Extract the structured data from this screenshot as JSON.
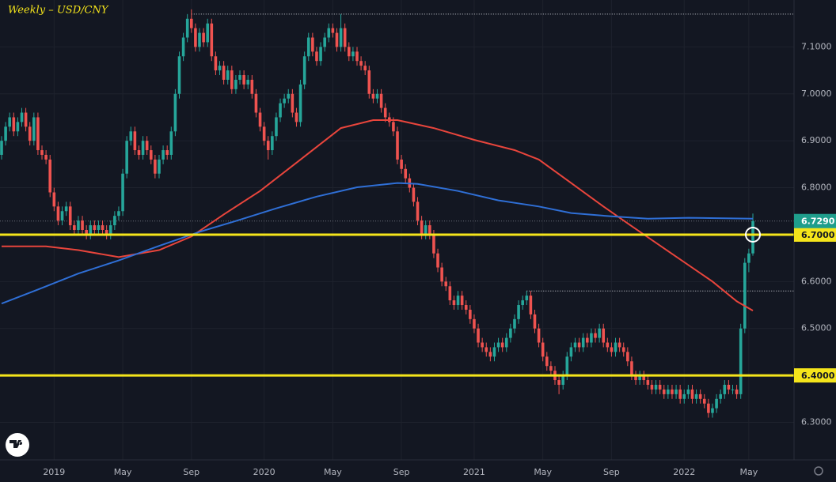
{
  "chart_data": {
    "type": "candlestick",
    "title": "Weekly – USD/CNY",
    "up_color": "#26a69a",
    "down_color": "#ef5350",
    "grid": true,
    "ylim": [
      6.22,
      7.2
    ],
    "yticks": [
      {
        "value": 6.3,
        "label": "6.3000"
      },
      {
        "value": 6.4,
        "label": "6.4000"
      },
      {
        "value": 6.5,
        "label": "6.5000"
      },
      {
        "value": 6.6,
        "label": "6.6000"
      },
      {
        "value": 6.7,
        "label": "6.7000"
      },
      {
        "value": 6.8,
        "label": "6.8000"
      },
      {
        "value": 6.9,
        "label": "6.9000"
      },
      {
        "value": 7.0,
        "label": "7.0000"
      },
      {
        "value": 7.1,
        "label": "7.1000"
      }
    ],
    "xlim": [
      0,
      186
    ],
    "xticks": [
      {
        "value": 13,
        "label": "2019"
      },
      {
        "value": 30,
        "label": "May"
      },
      {
        "value": 47,
        "label": "Sep"
      },
      {
        "value": 65,
        "label": "2020"
      },
      {
        "value": 82,
        "label": "May"
      },
      {
        "value": 99,
        "label": "Sep"
      },
      {
        "value": 117,
        "label": "2021"
      },
      {
        "value": 134,
        "label": "May"
      },
      {
        "value": 151,
        "label": "Sep"
      },
      {
        "value": 169,
        "label": "2022"
      },
      {
        "value": 185,
        "label": "May"
      }
    ],
    "candles": [
      [
        6.87,
        6.91,
        6.86,
        6.9
      ],
      [
        6.9,
        6.94,
        6.89,
        6.93
      ],
      [
        6.93,
        6.96,
        6.92,
        6.95
      ],
      [
        6.95,
        6.96,
        6.91,
        6.92
      ],
      [
        6.92,
        6.95,
        6.91,
        6.94
      ],
      [
        6.94,
        6.97,
        6.93,
        6.96
      ],
      [
        6.96,
        6.97,
        6.92,
        6.93
      ],
      [
        6.93,
        6.94,
        6.89,
        6.9
      ],
      [
        6.9,
        6.96,
        6.89,
        6.95
      ],
      [
        6.95,
        6.96,
        6.87,
        6.88
      ],
      [
        6.88,
        6.89,
        6.86,
        6.87
      ],
      [
        6.87,
        6.88,
        6.85,
        6.86
      ],
      [
        6.86,
        6.87,
        6.78,
        6.79
      ],
      [
        6.79,
        6.8,
        6.75,
        6.76
      ],
      [
        6.76,
        6.77,
        6.72,
        6.73
      ],
      [
        6.73,
        6.76,
        6.72,
        6.75
      ],
      [
        6.75,
        6.77,
        6.74,
        6.76
      ],
      [
        6.76,
        6.77,
        6.71,
        6.72
      ],
      [
        6.72,
        6.73,
        6.7,
        6.71
      ],
      [
        6.71,
        6.74,
        6.7,
        6.73
      ],
      [
        6.73,
        6.74,
        6.7,
        6.71
      ],
      [
        6.71,
        6.72,
        6.69,
        6.7
      ],
      [
        6.7,
        6.73,
        6.69,
        6.72
      ],
      [
        6.72,
        6.73,
        6.7,
        6.71
      ],
      [
        6.71,
        6.73,
        6.7,
        6.72
      ],
      [
        6.72,
        6.73,
        6.7,
        6.71
      ],
      [
        6.71,
        6.72,
        6.69,
        6.7
      ],
      [
        6.7,
        6.73,
        6.69,
        6.72
      ],
      [
        6.72,
        6.75,
        6.71,
        6.74
      ],
      [
        6.74,
        6.76,
        6.73,
        6.75
      ],
      [
        6.75,
        6.84,
        6.74,
        6.83
      ],
      [
        6.83,
        6.91,
        6.82,
        6.9
      ],
      [
        6.9,
        6.93,
        6.89,
        6.92
      ],
      [
        6.92,
        6.93,
        6.87,
        6.88
      ],
      [
        6.88,
        6.89,
        6.86,
        6.87
      ],
      [
        6.87,
        6.91,
        6.86,
        6.9
      ],
      [
        6.9,
        6.91,
        6.87,
        6.88
      ],
      [
        6.88,
        6.89,
        6.85,
        6.86
      ],
      [
        6.86,
        6.87,
        6.82,
        6.83
      ],
      [
        6.83,
        6.87,
        6.82,
        6.86
      ],
      [
        6.86,
        6.89,
        6.85,
        6.88
      ],
      [
        6.88,
        6.89,
        6.86,
        6.87
      ],
      [
        6.87,
        6.93,
        6.86,
        6.92
      ],
      [
        6.92,
        7.01,
        6.91,
        7.0
      ],
      [
        7.0,
        7.09,
        6.99,
        7.08
      ],
      [
        7.08,
        7.13,
        7.07,
        7.12
      ],
      [
        7.12,
        7.17,
        7.11,
        7.16
      ],
      [
        7.16,
        7.18,
        7.13,
        7.14
      ],
      [
        7.14,
        7.15,
        7.09,
        7.1
      ],
      [
        7.1,
        7.14,
        7.09,
        7.13
      ],
      [
        7.13,
        7.14,
        7.1,
        7.11
      ],
      [
        7.11,
        7.16,
        7.1,
        7.15
      ],
      [
        7.15,
        7.16,
        7.07,
        7.08
      ],
      [
        7.08,
        7.09,
        7.04,
        7.05
      ],
      [
        7.05,
        7.07,
        7.04,
        7.06
      ],
      [
        7.06,
        7.07,
        7.02,
        7.03
      ],
      [
        7.03,
        7.06,
        7.02,
        7.05
      ],
      [
        7.05,
        7.06,
        7.0,
        7.01
      ],
      [
        7.01,
        7.04,
        7.0,
        7.03
      ],
      [
        7.03,
        7.05,
        7.02,
        7.04
      ],
      [
        7.04,
        7.05,
        7.01,
        7.02
      ],
      [
        7.02,
        7.04,
        7.01,
        7.03
      ],
      [
        7.03,
        7.04,
        6.99,
        7.0
      ],
      [
        7.0,
        7.01,
        6.95,
        6.96
      ],
      [
        6.96,
        6.97,
        6.92,
        6.93
      ],
      [
        6.93,
        6.94,
        6.89,
        6.9
      ],
      [
        6.9,
        6.91,
        6.86,
        6.88
      ],
      [
        6.88,
        6.92,
        6.87,
        6.91
      ],
      [
        6.91,
        6.96,
        6.9,
        6.95
      ],
      [
        6.95,
        6.99,
        6.94,
        6.98
      ],
      [
        6.98,
        7.0,
        6.97,
        6.99
      ],
      [
        6.99,
        7.01,
        6.98,
        7.0
      ],
      [
        7.0,
        7.01,
        6.95,
        6.96
      ],
      [
        6.96,
        6.97,
        6.93,
        6.94
      ],
      [
        6.94,
        7.03,
        6.93,
        7.02
      ],
      [
        7.02,
        7.09,
        7.01,
        7.08
      ],
      [
        7.08,
        7.13,
        7.07,
        7.12
      ],
      [
        7.12,
        7.13,
        7.08,
        7.09
      ],
      [
        7.09,
        7.1,
        7.06,
        7.07
      ],
      [
        7.07,
        7.11,
        7.06,
        7.1
      ],
      [
        7.1,
        7.13,
        7.09,
        7.12
      ],
      [
        7.12,
        7.15,
        7.11,
        7.14
      ],
      [
        7.14,
        7.15,
        7.12,
        7.13
      ],
      [
        7.13,
        7.14,
        7.09,
        7.1
      ],
      [
        7.1,
        7.17,
        7.09,
        7.14
      ],
      [
        7.14,
        7.15,
        7.09,
        7.1
      ],
      [
        7.1,
        7.11,
        7.07,
        7.08
      ],
      [
        7.08,
        7.1,
        7.07,
        7.09
      ],
      [
        7.09,
        7.1,
        7.06,
        7.07
      ],
      [
        7.07,
        7.08,
        7.05,
        7.06
      ],
      [
        7.06,
        7.07,
        7.04,
        7.05
      ],
      [
        7.05,
        7.06,
        6.99,
        7.0
      ],
      [
        7.0,
        7.01,
        6.98,
        6.99
      ],
      [
        6.99,
        7.01,
        6.98,
        7.0
      ],
      [
        7.0,
        7.01,
        6.96,
        6.97
      ],
      [
        6.97,
        6.98,
        6.94,
        6.95
      ],
      [
        6.95,
        6.96,
        6.93,
        6.94
      ],
      [
        6.94,
        6.95,
        6.91,
        6.92
      ],
      [
        6.92,
        6.93,
        6.85,
        6.86
      ],
      [
        6.86,
        6.87,
        6.83,
        6.84
      ],
      [
        6.84,
        6.85,
        6.81,
        6.82
      ],
      [
        6.82,
        6.83,
        6.79,
        6.8
      ],
      [
        6.8,
        6.81,
        6.76,
        6.77
      ],
      [
        6.77,
        6.78,
        6.72,
        6.73
      ],
      [
        6.73,
        6.74,
        6.69,
        6.7
      ],
      [
        6.7,
        6.73,
        6.69,
        6.72
      ],
      [
        6.72,
        6.73,
        6.69,
        6.7
      ],
      [
        6.7,
        6.71,
        6.65,
        6.66
      ],
      [
        6.66,
        6.67,
        6.62,
        6.63
      ],
      [
        6.63,
        6.64,
        6.59,
        6.6
      ],
      [
        6.6,
        6.61,
        6.58,
        6.59
      ],
      [
        6.59,
        6.6,
        6.55,
        6.56
      ],
      [
        6.56,
        6.57,
        6.54,
        6.55
      ],
      [
        6.55,
        6.58,
        6.54,
        6.57
      ],
      [
        6.57,
        6.58,
        6.54,
        6.55
      ],
      [
        6.55,
        6.56,
        6.53,
        6.54
      ],
      [
        6.54,
        6.55,
        6.51,
        6.52
      ],
      [
        6.52,
        6.53,
        6.49,
        6.5
      ],
      [
        6.5,
        6.51,
        6.46,
        6.47
      ],
      [
        6.47,
        6.48,
        6.45,
        6.46
      ],
      [
        6.46,
        6.47,
        6.44,
        6.45
      ],
      [
        6.45,
        6.46,
        6.43,
        6.44
      ],
      [
        6.44,
        6.47,
        6.43,
        6.46
      ],
      [
        6.46,
        6.48,
        6.45,
        6.47
      ],
      [
        6.47,
        6.48,
        6.45,
        6.46
      ],
      [
        6.46,
        6.49,
        6.45,
        6.48
      ],
      [
        6.48,
        6.51,
        6.47,
        6.5
      ],
      [
        6.5,
        6.53,
        6.49,
        6.52
      ],
      [
        6.52,
        6.56,
        6.51,
        6.55
      ],
      [
        6.55,
        6.57,
        6.54,
        6.56
      ],
      [
        6.56,
        6.58,
        6.55,
        6.57
      ],
      [
        6.57,
        6.58,
        6.52,
        6.53
      ],
      [
        6.53,
        6.54,
        6.49,
        6.5
      ],
      [
        6.5,
        6.51,
        6.46,
        6.47
      ],
      [
        6.47,
        6.48,
        6.43,
        6.44
      ],
      [
        6.44,
        6.45,
        6.41,
        6.42
      ],
      [
        6.42,
        6.43,
        6.4,
        6.41
      ],
      [
        6.41,
        6.42,
        6.38,
        6.39
      ],
      [
        6.39,
        6.4,
        6.36,
        6.38
      ],
      [
        6.38,
        6.41,
        6.37,
        6.4
      ],
      [
        6.4,
        6.45,
        6.39,
        6.44
      ],
      [
        6.44,
        6.47,
        6.43,
        6.46
      ],
      [
        6.46,
        6.48,
        6.45,
        6.47
      ],
      [
        6.47,
        6.48,
        6.45,
        6.46
      ],
      [
        6.46,
        6.49,
        6.45,
        6.48
      ],
      [
        6.48,
        6.49,
        6.46,
        6.47
      ],
      [
        6.47,
        6.5,
        6.46,
        6.49
      ],
      [
        6.49,
        6.5,
        6.47,
        6.48
      ],
      [
        6.48,
        6.51,
        6.47,
        6.5
      ],
      [
        6.5,
        6.51,
        6.46,
        6.47
      ],
      [
        6.47,
        6.48,
        6.45,
        6.46
      ],
      [
        6.46,
        6.47,
        6.44,
        6.45
      ],
      [
        6.45,
        6.48,
        6.44,
        6.47
      ],
      [
        6.47,
        6.48,
        6.45,
        6.46
      ],
      [
        6.46,
        6.47,
        6.44,
        6.45
      ],
      [
        6.45,
        6.46,
        6.42,
        6.43
      ],
      [
        6.43,
        6.44,
        6.39,
        6.4
      ],
      [
        6.4,
        6.41,
        6.38,
        6.39
      ],
      [
        6.39,
        6.41,
        6.38,
        6.4
      ],
      [
        6.4,
        6.41,
        6.38,
        6.39
      ],
      [
        6.39,
        6.4,
        6.37,
        6.38
      ],
      [
        6.38,
        6.39,
        6.36,
        6.37
      ],
      [
        6.37,
        6.39,
        6.36,
        6.38
      ],
      [
        6.38,
        6.39,
        6.36,
        6.37
      ],
      [
        6.37,
        6.38,
        6.35,
        6.36
      ],
      [
        6.36,
        6.38,
        6.35,
        6.37
      ],
      [
        6.37,
        6.38,
        6.35,
        6.36
      ],
      [
        6.36,
        6.38,
        6.35,
        6.37
      ],
      [
        6.37,
        6.38,
        6.34,
        6.35
      ],
      [
        6.35,
        6.37,
        6.34,
        6.36
      ],
      [
        6.36,
        6.38,
        6.35,
        6.37
      ],
      [
        6.37,
        6.38,
        6.34,
        6.35
      ],
      [
        6.35,
        6.37,
        6.34,
        6.36
      ],
      [
        6.36,
        6.37,
        6.34,
        6.35
      ],
      [
        6.35,
        6.36,
        6.33,
        6.34
      ],
      [
        6.34,
        6.35,
        6.31,
        6.32
      ],
      [
        6.32,
        6.34,
        6.31,
        6.33
      ],
      [
        6.33,
        6.36,
        6.32,
        6.35
      ],
      [
        6.35,
        6.37,
        6.34,
        6.36
      ],
      [
        6.36,
        6.39,
        6.35,
        6.38
      ],
      [
        6.38,
        6.39,
        6.36,
        6.37
      ],
      [
        6.37,
        6.38,
        6.36,
        6.37
      ],
      [
        6.37,
        6.38,
        6.35,
        6.36
      ],
      [
        6.36,
        6.51,
        6.35,
        6.5
      ],
      [
        6.5,
        6.65,
        6.49,
        6.64
      ],
      [
        6.64,
        6.67,
        6.62,
        6.66
      ],
      [
        6.66,
        6.745,
        6.655,
        6.729
      ]
    ],
    "series": [
      {
        "color": "#e8453c",
        "x": [
          0,
          11,
          19,
          29,
          39,
          47,
          55,
          64,
          74,
          84,
          92,
          98,
          107,
          117,
          127,
          133,
          141,
          149,
          156,
          166,
          176,
          182,
          186
        ],
        "values": [
          6.675,
          6.675,
          6.667,
          6.652,
          6.667,
          6.696,
          6.743,
          6.793,
          6.86,
          6.927,
          6.944,
          6.944,
          6.927,
          6.902,
          6.88,
          6.86,
          6.81,
          6.76,
          6.718,
          6.659,
          6.6,
          6.558,
          6.538
        ]
      },
      {
        "color": "#2f6fd6",
        "x": [
          0,
          9,
          19,
          29,
          39,
          49,
          58,
          68,
          78,
          88,
          98,
          103,
          113,
          123,
          133,
          141,
          151,
          160,
          170,
          186
        ],
        "values": [
          6.553,
          6.583,
          6.617,
          6.645,
          6.676,
          6.706,
          6.729,
          6.756,
          6.781,
          6.801,
          6.81,
          6.808,
          6.793,
          6.773,
          6.76,
          6.746,
          6.739,
          6.734,
          6.736,
          6.734
        ]
      }
    ],
    "levels": [
      {
        "value": 6.7,
        "label": "6.7000",
        "color": "#f5e51b"
      },
      {
        "value": 6.4,
        "label": "6.4000",
        "color": "#f5e51b"
      }
    ],
    "last_price": {
      "value": 6.729,
      "label": "6.7290",
      "color": "#1f9e8c"
    },
    "dotted_levels": [
      {
        "x": 47,
        "value": 7.17
      },
      {
        "x": 130,
        "value": 6.58
      }
    ],
    "marker": {
      "x": 186,
      "value": 6.7
    }
  }
}
